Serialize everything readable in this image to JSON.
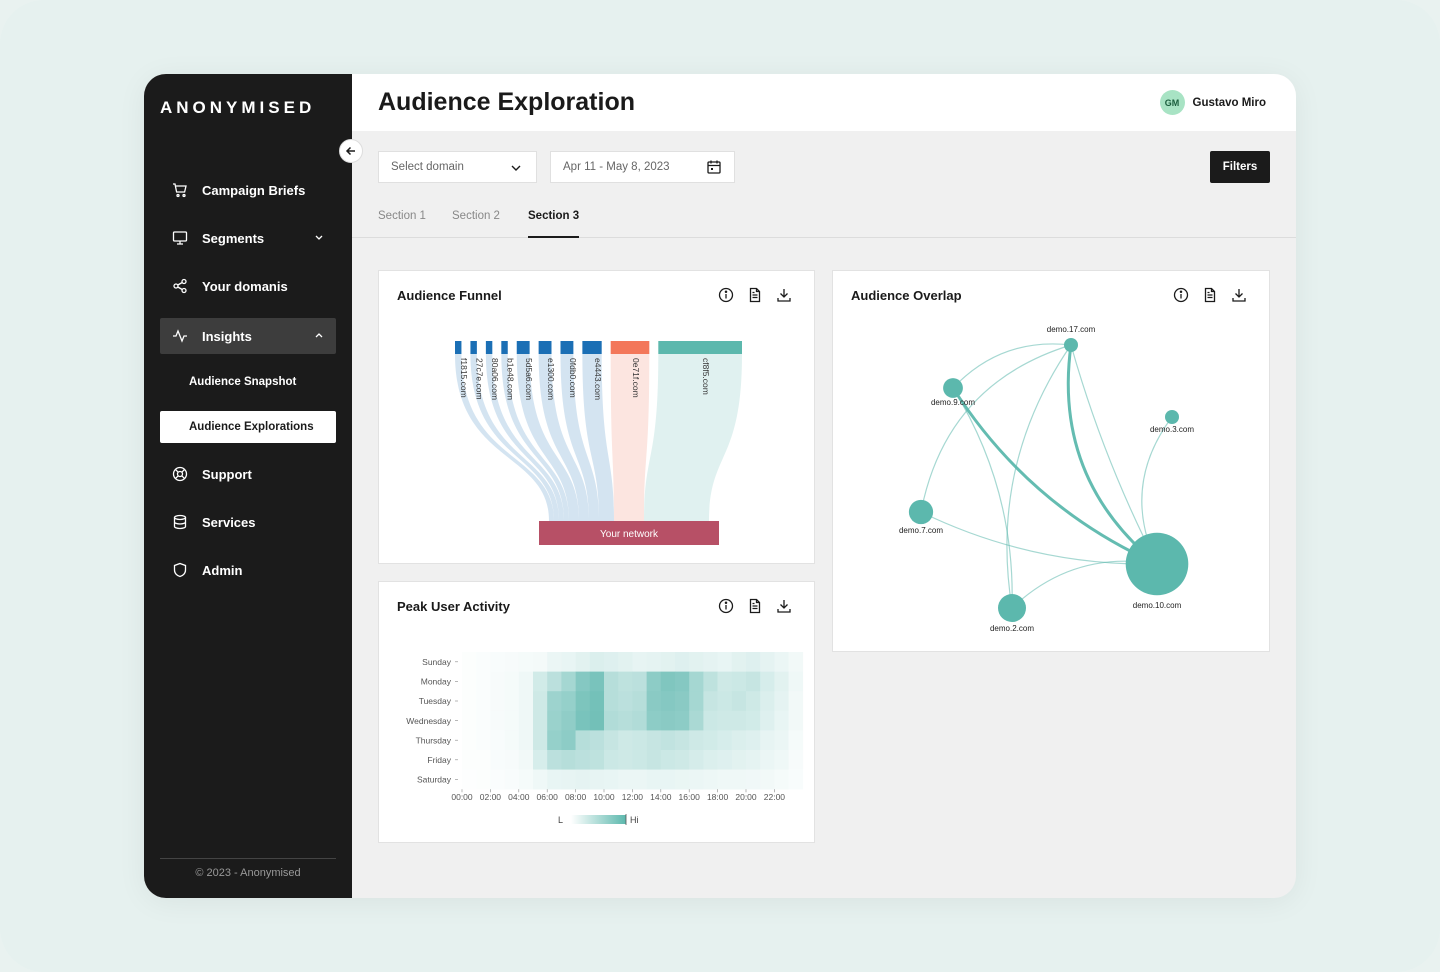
{
  "brand": {
    "logo": "ANONYMISED",
    "footer": "© 2023 - Anonymised"
  },
  "sidebar": {
    "items": [
      {
        "label": "Campaign Briefs",
        "icon": "cart-icon"
      },
      {
        "label": "Segments",
        "icon": "monitor-icon",
        "expandable": true
      },
      {
        "label": "Your domanis",
        "icon": "share-icon"
      },
      {
        "label": "Insights",
        "icon": "activity-icon",
        "expanded": true,
        "active": true
      },
      {
        "label": "Support",
        "icon": "lifebuoy-icon"
      },
      {
        "label": "Services",
        "icon": "database-icon"
      },
      {
        "label": "Admin",
        "icon": "shield-icon"
      }
    ],
    "subitems": [
      {
        "label": "Audience Snapshot"
      },
      {
        "label": "Audience Explorations",
        "selected": true
      }
    ]
  },
  "header": {
    "title": "Audience Exploration",
    "user_name": "Gustavo Miro",
    "user_initials": "GM"
  },
  "toolbar": {
    "domain_placeholder": "Select domain",
    "date_range": "Apr 11 - May 8, 2023",
    "filters_label": "Filters"
  },
  "tabs": [
    {
      "label": "Section 1"
    },
    {
      "label": "Section 2"
    },
    {
      "label": "Section 3",
      "active": true
    }
  ],
  "cards": {
    "funnel": {
      "title": "Audience Funnel"
    },
    "overlap": {
      "title": "Audience Overlap"
    },
    "peak": {
      "title": "Peak User Activity"
    }
  },
  "colors": {
    "teal": "#5cb8ad",
    "blue": "#1b6fb5",
    "orange": "#f3775a",
    "network": "#b75066"
  },
  "chart_data": [
    {
      "type": "sankey",
      "title": "Audience Funnel",
      "sources": [
        {
          "name": "f1815.com",
          "value": 1,
          "color": "#1b6fb5"
        },
        {
          "name": "27c7e.com",
          "value": 1,
          "color": "#1b6fb5"
        },
        {
          "name": "80a06.com",
          "value": 1,
          "color": "#1b6fb5"
        },
        {
          "name": "b1e48.com",
          "value": 1,
          "color": "#1b6fb5"
        },
        {
          "name": "5d5a6.com",
          "value": 2,
          "color": "#1b6fb5"
        },
        {
          "name": "e1300.com",
          "value": 2,
          "color": "#1b6fb5"
        },
        {
          "name": "0fdb0.com",
          "value": 2,
          "color": "#1b6fb5"
        },
        {
          "name": "e4443.com",
          "value": 3,
          "color": "#1b6fb5"
        },
        {
          "name": "0e71f.com",
          "value": 6,
          "color": "#f3775a"
        },
        {
          "name": "cf8f5.com",
          "value": 13,
          "color": "#5cb8ad"
        }
      ],
      "target": "Your network"
    },
    {
      "type": "network",
      "title": "Audience Overlap",
      "nodes": [
        {
          "name": "demo.17.com",
          "size": 1
        },
        {
          "name": "demo.9.com",
          "size": 2
        },
        {
          "name": "demo.3.com",
          "size": 1
        },
        {
          "name": "demo.7.com",
          "size": 3
        },
        {
          "name": "demo.10.com",
          "size": 20
        },
        {
          "name": "demo.2.com",
          "size": 4
        }
      ],
      "edges": [
        [
          "demo.17.com",
          "demo.10.com",
          3
        ],
        [
          "demo.9.com",
          "demo.10.com",
          3
        ],
        [
          "demo.17.com",
          "demo.9.com",
          1
        ],
        [
          "demo.17.com",
          "demo.7.com",
          1
        ],
        [
          "demo.17.com",
          "demo.2.com",
          1
        ],
        [
          "demo.17.com",
          "demo.10.com",
          1
        ],
        [
          "demo.9.com",
          "demo.2.com",
          1
        ],
        [
          "demo.7.com",
          "demo.10.com",
          1
        ],
        [
          "demo.3.com",
          "demo.10.com",
          1
        ],
        [
          "demo.2.com",
          "demo.10.com",
          1
        ]
      ]
    },
    {
      "type": "heatmap",
      "title": "Peak User Activity",
      "y": [
        "Sunday",
        "Monday",
        "Tuesday",
        "Wednesday",
        "Thursday",
        "Friday",
        "Saturday"
      ],
      "x_ticks": [
        "00:00",
        "02:00",
        "04:00",
        "06:00",
        "08:00",
        "10:00",
        "12:00",
        "14:00",
        "16:00",
        "18:00",
        "20:00",
        "22:00"
      ],
      "legend": {
        "low": "L",
        "high": "Hi"
      },
      "values": [
        [
          0.02,
          0.03,
          0.04,
          0.05,
          0.06,
          0.07,
          0.12,
          0.14,
          0.18,
          0.22,
          0.2,
          0.18,
          0.15,
          0.16,
          0.18,
          0.2,
          0.18,
          0.16,
          0.14,
          0.18,
          0.2,
          0.16,
          0.12,
          0.08
        ],
        [
          0.02,
          0.03,
          0.05,
          0.06,
          0.1,
          0.28,
          0.42,
          0.55,
          0.75,
          0.82,
          0.45,
          0.4,
          0.42,
          0.7,
          0.78,
          0.75,
          0.55,
          0.4,
          0.3,
          0.32,
          0.35,
          0.25,
          0.18,
          0.1
        ],
        [
          0.02,
          0.03,
          0.05,
          0.06,
          0.1,
          0.3,
          0.6,
          0.65,
          0.8,
          0.85,
          0.45,
          0.42,
          0.45,
          0.72,
          0.75,
          0.72,
          0.55,
          0.35,
          0.32,
          0.35,
          0.3,
          0.22,
          0.16,
          0.08
        ],
        [
          0.02,
          0.03,
          0.05,
          0.06,
          0.1,
          0.3,
          0.62,
          0.68,
          0.82,
          0.86,
          0.48,
          0.45,
          0.48,
          0.7,
          0.72,
          0.7,
          0.52,
          0.32,
          0.3,
          0.3,
          0.28,
          0.2,
          0.14,
          0.08
        ],
        [
          0.02,
          0.03,
          0.04,
          0.06,
          0.1,
          0.3,
          0.65,
          0.7,
          0.45,
          0.42,
          0.35,
          0.3,
          0.32,
          0.35,
          0.38,
          0.35,
          0.3,
          0.28,
          0.25,
          0.22,
          0.2,
          0.15,
          0.12,
          0.06
        ],
        [
          0.02,
          0.02,
          0.04,
          0.05,
          0.08,
          0.25,
          0.42,
          0.45,
          0.42,
          0.4,
          0.32,
          0.3,
          0.32,
          0.35,
          0.32,
          0.3,
          0.26,
          0.22,
          0.2,
          0.18,
          0.16,
          0.12,
          0.1,
          0.05
        ],
        [
          0.01,
          0.02,
          0.03,
          0.04,
          0.06,
          0.1,
          0.14,
          0.15,
          0.16,
          0.15,
          0.14,
          0.12,
          0.12,
          0.14,
          0.14,
          0.13,
          0.12,
          0.11,
          0.1,
          0.1,
          0.09,
          0.08,
          0.06,
          0.04
        ]
      ]
    }
  ]
}
